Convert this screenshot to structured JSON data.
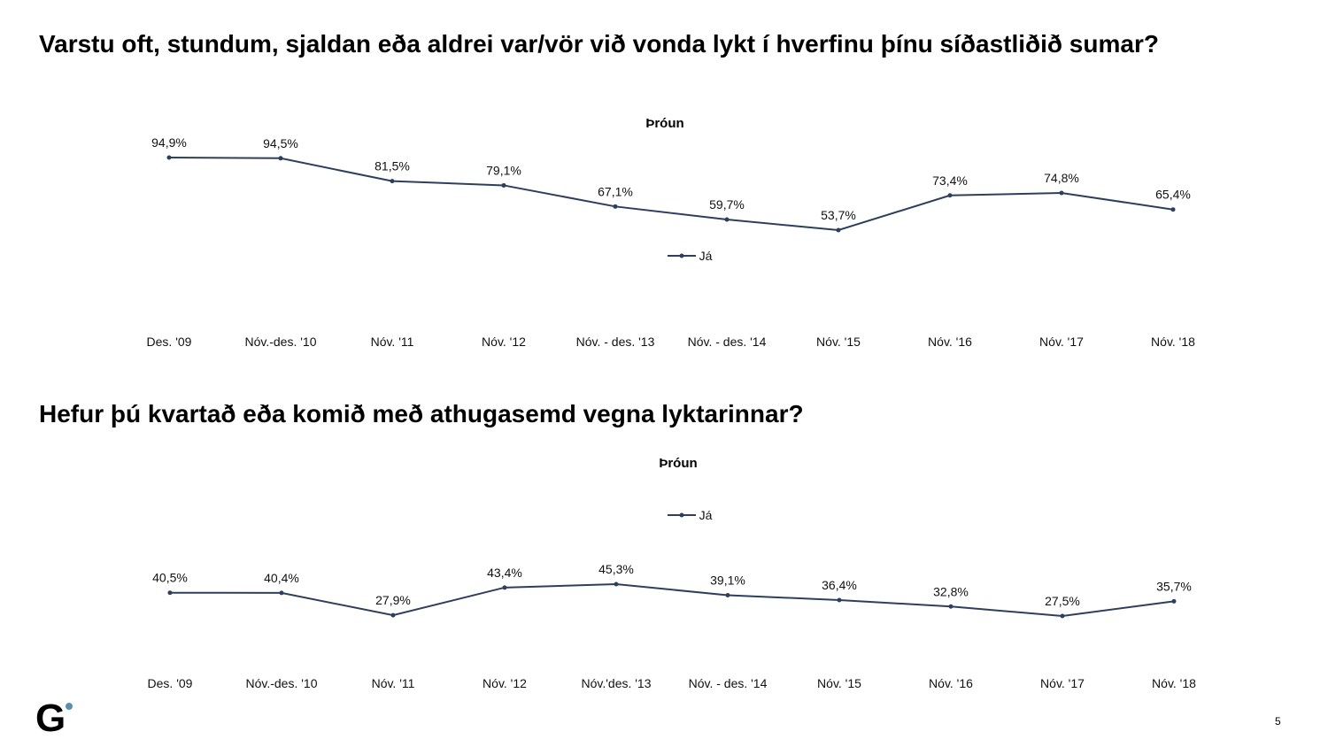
{
  "questions": [
    "Varstu oft, stundum, sjaldan eða aldrei var/vör við vonda lykt í hverfinu þínu síðastliðið sumar?",
    "Hefur þú kvartað eða komið með athugasemd vegna lyktarinnar?"
  ],
  "logo": "G",
  "page_number": "5",
  "colors": {
    "line": "#2e3f5c",
    "logo_dot": "#5b8fb0"
  },
  "chart_data": [
    {
      "type": "line",
      "title": "Þróun",
      "legend": "Já",
      "legend_position": "center",
      "categories": [
        "Des. '09",
        "Nóv.-des. '10",
        "Nóv. '11",
        "Nóv. '12",
        "Nóv. - des. '13",
        "Nóv. - des. '14",
        "Nóv. '15",
        "Nóv. '16",
        "Nóv. '17",
        "Nóv. '18"
      ],
      "values": [
        94.9,
        94.5,
        81.5,
        79.1,
        67.1,
        59.7,
        53.7,
        73.4,
        74.8,
        65.4
      ],
      "labels": [
        "94,9%",
        "94,5%",
        "81,5%",
        "79,1%",
        "67,1%",
        "59,7%",
        "53,7%",
        "73,4%",
        "74,8%",
        "65,4%"
      ],
      "grid": false
    },
    {
      "type": "line",
      "title": "Þróun",
      "legend": "Já",
      "legend_position": "top",
      "categories": [
        "Des. '09",
        "Nóv.-des. '10",
        "Nóv. '11",
        "Nóv. '12",
        "Nóv.'des. '13",
        "Nóv. - des. '14",
        "Nóv. '15",
        "Nóv. '16",
        "Nóv. '17",
        "Nóv. '18"
      ],
      "values": [
        40.5,
        40.4,
        27.9,
        43.4,
        45.3,
        39.1,
        36.4,
        32.8,
        27.5,
        35.7
      ],
      "labels": [
        "40,5%",
        "40,4%",
        "27,9%",
        "43,4%",
        "45,3%",
        "39,1%",
        "36,4%",
        "32,8%",
        "27,5%",
        "35,7%"
      ],
      "grid": false
    }
  ]
}
